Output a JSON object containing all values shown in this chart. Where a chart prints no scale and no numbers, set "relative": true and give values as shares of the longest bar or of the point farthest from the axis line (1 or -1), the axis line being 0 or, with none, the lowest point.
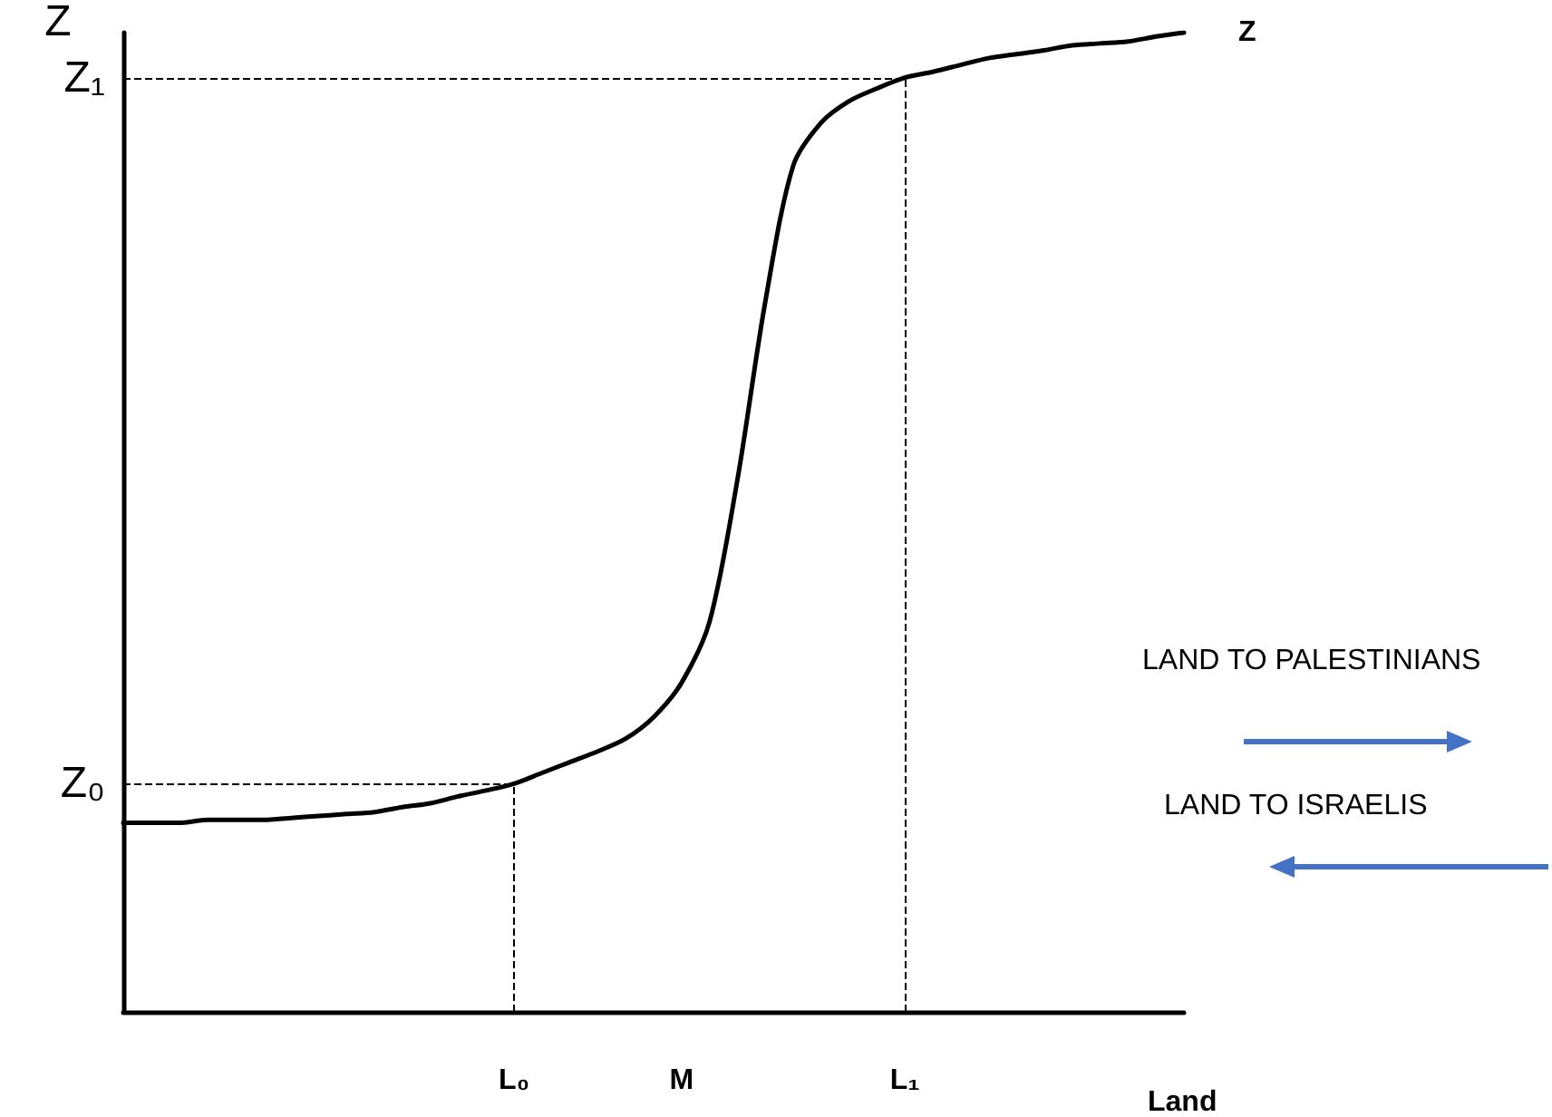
{
  "chart_data": {
    "type": "line",
    "relative": true,
    "xlabel": "Land",
    "ylabel": "Z",
    "marker": "none",
    "grid": false,
    "legend": false,
    "categories": [
      null,
      null,
      null,
      null,
      null,
      null,
      null,
      null,
      null,
      null,
      null,
      null,
      null,
      null,
      "L₀",
      null,
      null,
      null,
      null,
      null,
      "M",
      null,
      null,
      null,
      null,
      null,
      null,
      null,
      "L₁",
      null,
      null,
      null,
      null,
      null,
      null,
      null,
      null,
      null,
      null
    ],
    "series": [
      {
        "name": "Z",
        "color": "#000000",
        "line_style": "solid",
        "values": [
          0.193,
          0.193,
          0.193,
          0.196,
          0.196,
          0.196,
          0.198,
          0.2,
          0.202,
          0.204,
          0.209,
          0.213,
          0.22,
          0.226,
          0.233,
          0.244,
          0.255,
          0.266,
          0.279,
          0.301,
          0.336,
          0.398,
          0.543,
          0.725,
          0.864,
          0.908,
          0.93,
          0.943,
          0.954,
          0.96,
          0.967,
          0.974,
          0.978,
          0.982,
          0.987,
          0.989,
          0.991,
          0.996,
          1
        ]
      }
    ],
    "ref_lines": [
      {
        "axis": "y",
        "value": 0.233,
        "label": "Z₀",
        "line_style": "dashed",
        "color": "#000000"
      },
      {
        "axis": "y",
        "value": 0.954,
        "label": "Z₁",
        "line_style": "dashed",
        "color": "#000000"
      },
      {
        "axis": "x",
        "value": "L₀",
        "label": null,
        "line_style": "dashed",
        "color": "#000000"
      },
      {
        "axis": "x",
        "value": "L₁",
        "label": null,
        "line_style": "dashed",
        "color": "#000000"
      }
    ],
    "annotations": [
      "LAND TO PALESTINIANS",
      "LAND TO ISRAELIS"
    ]
  }
}
